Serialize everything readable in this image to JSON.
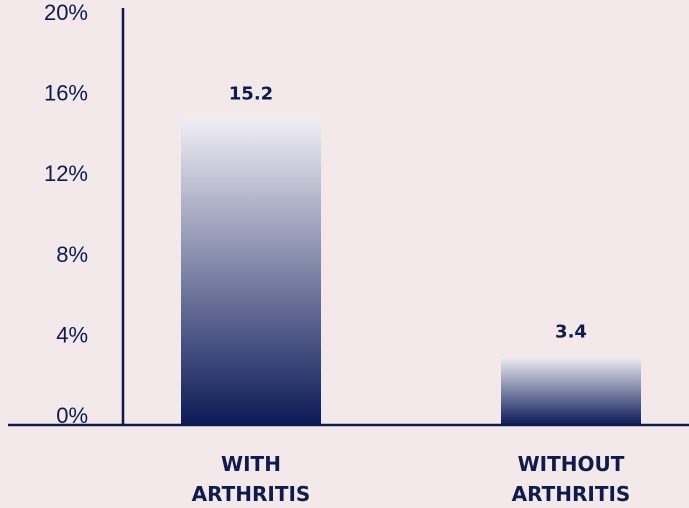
{
  "chart_data": {
    "type": "bar",
    "title": "",
    "xlabel": "",
    "ylabel": "",
    "categories": [
      "WITH ARTHRITIS",
      "WITHOUT ARTHRITIS"
    ],
    "category_lines": [
      [
        "WITH",
        "ARTHRITIS"
      ],
      [
        "WITHOUT",
        "ARTHRITIS"
      ]
    ],
    "values": [
      15.2,
      3.4
    ],
    "value_labels": [
      "15.2",
      "3.4"
    ],
    "ylim": [
      0,
      20
    ],
    "yticks": [
      0,
      4,
      8,
      12,
      16,
      20
    ],
    "ytick_labels": [
      "0%",
      "4%",
      "8%",
      "12%",
      "16%",
      "20%"
    ],
    "grid": false,
    "legend": "none"
  },
  "colors": {
    "background": "#f3e8ea",
    "axis": "#0f1b4c",
    "bar_top": "#f0eef4",
    "bar_bottom": "#0b1a58",
    "text": "#0f1b4c"
  }
}
